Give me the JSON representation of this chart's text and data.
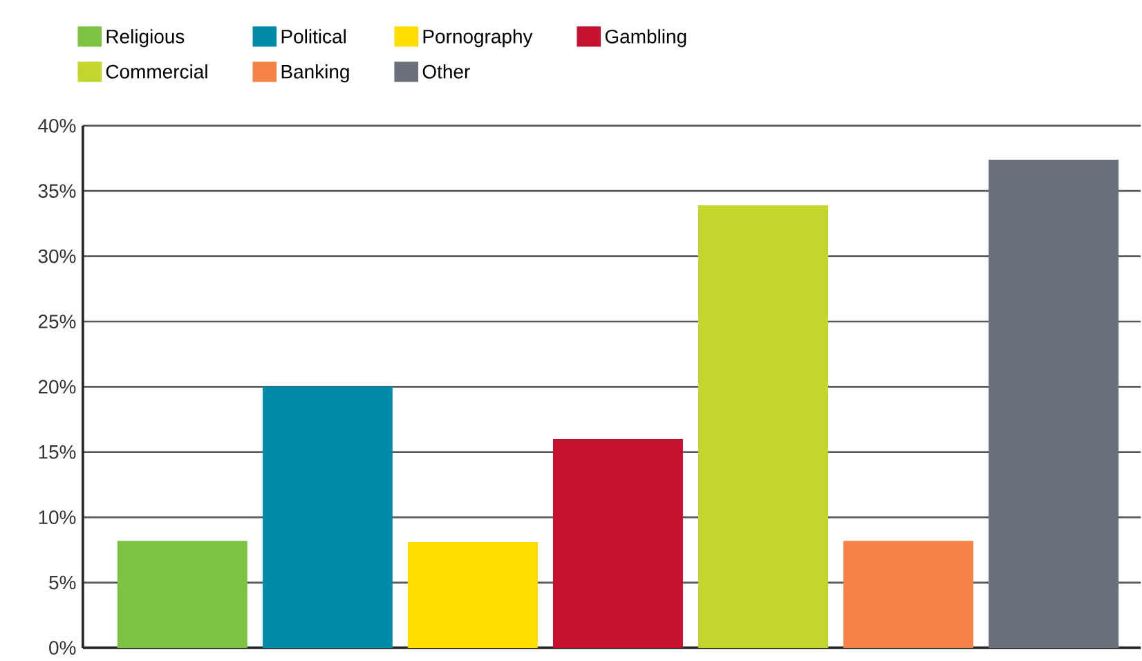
{
  "chart_data": {
    "type": "bar",
    "categories": [
      null,
      null,
      null,
      null,
      null,
      null,
      null
    ],
    "series": [
      {
        "name": "Religious",
        "color": "#7dc242",
        "values": [
          8.2,
          null,
          null,
          null,
          null,
          null,
          null
        ]
      },
      {
        "name": "Political",
        "color": "#008ba8",
        "values": [
          null,
          20,
          null,
          null,
          null,
          null,
          null
        ]
      },
      {
        "name": "Pornography",
        "color": "#ffdd00",
        "values": [
          null,
          null,
          8.1,
          null,
          null,
          null,
          null
        ]
      },
      {
        "name": "Gambling",
        "color": "#c3112f",
        "values": [
          null,
          null,
          null,
          16,
          null,
          null,
          null
        ]
      },
      {
        "name": "Commercial",
        "color": "#c2d62e",
        "values": [
          null,
          null,
          null,
          null,
          33.9,
          null,
          null
        ]
      },
      {
        "name": "Banking",
        "color": "#f58345",
        "values": [
          null,
          null,
          null,
          null,
          null,
          8.2,
          null
        ]
      },
      {
        "name": "Other",
        "color": "#6b717b",
        "values": [
          null,
          null,
          null,
          null,
          null,
          null,
          37.4
        ]
      }
    ],
    "ylim": [
      0,
      40
    ],
    "yticks": [
      {
        "value": 0,
        "label": "0%"
      },
      {
        "value": 5,
        "label": "5%"
      },
      {
        "value": 10,
        "label": "10%"
      },
      {
        "value": 15,
        "label": "15%"
      },
      {
        "value": 20,
        "label": "20%"
      },
      {
        "value": 25,
        "label": "25%"
      },
      {
        "value": 30,
        "label": "30%"
      },
      {
        "value": 35,
        "label": "35%"
      },
      {
        "value": 40,
        "label": "40%"
      }
    ],
    "grid": "y",
    "legend": "top left"
  }
}
